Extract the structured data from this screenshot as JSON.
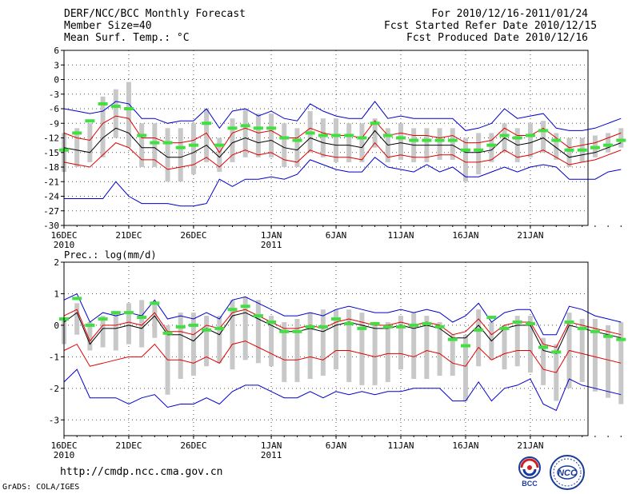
{
  "header": {
    "left": [
      "DERF/NCC/BCC Monthly Forecast",
      "Member Size=40",
      "Mean Surf. Temp.: °C"
    ],
    "right": [
      "For 2010/12/16-2011/01/24",
      "Fcst Started Refer Date 2010/12/15",
      "Fcst Produced Date 2010/12/16"
    ]
  },
  "footer": {
    "url": "http://cmdp.ncc.cma.gov.cn",
    "credit": "GrADS: COLA/IGES"
  },
  "logos": {
    "bcc": "BCC",
    "ncc": "NCC"
  },
  "colors": {
    "ensemble_mean": "#000000",
    "spread": "#e00000",
    "extremes": "#0000cc",
    "member_bar": "#c8c8c8",
    "forecast_marker": "#40e040"
  },
  "chart_data": [
    {
      "type": "line",
      "title": "Mean Surf. Temp.: °C",
      "ylim": [
        -30,
        6
      ],
      "yticks": [
        6,
        3,
        0,
        -3,
        -6,
        -9,
        -12,
        -15,
        -18,
        -21,
        -24,
        -27,
        -30
      ],
      "xlim": [
        0,
        40
      ],
      "xticks": [
        {
          "x": 0,
          "label": "16DEC",
          "sub": "2010"
        },
        {
          "x": 5,
          "label": "21DEC",
          "sub": ""
        },
        {
          "x": 10,
          "label": "26DEC",
          "sub": ""
        },
        {
          "x": 16,
          "label": "1JAN",
          "sub": "2011"
        },
        {
          "x": 21,
          "label": "6JAN",
          "sub": ""
        },
        {
          "x": 26,
          "label": "11JAN",
          "sub": ""
        },
        {
          "x": 31,
          "label": "16JAN",
          "sub": ""
        },
        {
          "x": 36,
          "label": "21JAN",
          "sub": ""
        }
      ],
      "series": [
        {
          "name": "max",
          "color": "#0000cc",
          "values": [
            -6,
            -6.5,
            -7,
            -6.5,
            -4.5,
            -5,
            -8,
            -8,
            -9,
            -8.5,
            -8.5,
            -6,
            -10,
            -6.5,
            -6,
            -7.5,
            -6.5,
            -8,
            -8.5,
            -5,
            -6.5,
            -7.5,
            -8,
            -8,
            -4.5,
            -8,
            -7.5,
            -8,
            -8,
            -8,
            -8,
            -10.5,
            -10,
            -9,
            -6,
            -8,
            -7.5,
            -7,
            -10,
            -10.5,
            -10.5,
            -10,
            -9,
            -8
          ]
        },
        {
          "name": "upper",
          "color": "#e00000",
          "values": [
            -11,
            -12,
            -12.5,
            -9,
            -7.5,
            -8,
            -12,
            -12,
            -13,
            -13,
            -12.5,
            -11,
            -15,
            -11,
            -10,
            -11,
            -10.5,
            -12,
            -12,
            -10,
            -11,
            -11.5,
            -11.5,
            -12,
            -8.5,
            -11.5,
            -11,
            -11.5,
            -11.5,
            -12,
            -11.5,
            -13,
            -13,
            -12.5,
            -10,
            -11.5,
            -11.5,
            -10,
            -12,
            -14,
            -13.5,
            -13,
            -12,
            -11
          ]
        },
        {
          "name": "mean",
          "color": "#000000",
          "values": [
            -14,
            -14.5,
            -15,
            -12,
            -10,
            -11,
            -14,
            -14,
            -16,
            -16,
            -15,
            -13.5,
            -16,
            -13,
            -12,
            -13,
            -12.5,
            -14,
            -14.5,
            -12,
            -13,
            -13.5,
            -13.5,
            -14,
            -10.5,
            -13.5,
            -13,
            -13.5,
            -13.5,
            -13.5,
            -13.5,
            -15,
            -15,
            -14.5,
            -12,
            -13.5,
            -13,
            -12,
            -14,
            -16,
            -15.5,
            -15,
            -14,
            -13
          ]
        },
        {
          "name": "lower",
          "color": "#e00000",
          "values": [
            -17,
            -17.5,
            -18,
            -15.5,
            -13,
            -14,
            -16.5,
            -16.5,
            -18.5,
            -18,
            -17.5,
            -16,
            -18,
            -15.5,
            -14.5,
            -15.5,
            -15,
            -16.5,
            -17,
            -14.5,
            -15.5,
            -16,
            -16,
            -16.5,
            -13,
            -16,
            -15.5,
            -16,
            -16,
            -15.5,
            -15.5,
            -17,
            -17,
            -16.5,
            -14.5,
            -16,
            -15.5,
            -14.5,
            -16,
            -17.5,
            -17,
            -16.5,
            -15.5,
            -14.5
          ]
        },
        {
          "name": "min",
          "color": "#0000cc",
          "values": [
            -24.5,
            -24.5,
            -24.5,
            -24.5,
            -21,
            -24,
            -25.5,
            -25.5,
            -25.5,
            -26,
            -26,
            -25.5,
            -20.5,
            -22,
            -20.5,
            -20.5,
            -20,
            -20.5,
            -19.5,
            -16.5,
            -17.5,
            -18.5,
            -19,
            -19,
            -16,
            -18,
            -18.5,
            -19,
            -17.5,
            -19,
            -18,
            -20,
            -20,
            -19,
            -18,
            -19,
            -18,
            -17.5,
            -18,
            -20.5,
            -20.5,
            -20.5,
            -19,
            -18.5
          ]
        }
      ],
      "members": {
        "bar_low": [
          -19,
          -18,
          -17,
          -16,
          -12,
          -14,
          -18,
          -18,
          -21,
          -21,
          -19.5,
          -17,
          -19,
          -17,
          -16,
          -16,
          -16,
          -18,
          -18,
          -15,
          -16,
          -17,
          -17,
          -17,
          -14,
          -17,
          -16.5,
          -17,
          -17,
          -16.5,
          -16.5,
          -21,
          -19.5,
          -17,
          -15,
          -17,
          -16,
          -15,
          -16.5,
          -18,
          -17,
          -16,
          -15,
          -14
        ],
        "bar_high": [
          -11,
          -10,
          -9,
          -3.5,
          -2,
          -0.5,
          -9,
          -9,
          -10,
          -10,
          -9,
          -6,
          -12,
          -8,
          -6,
          -7,
          -7,
          -9,
          -10,
          -6.5,
          -8,
          -8,
          -9,
          -9,
          -8,
          -10,
          -9,
          -10,
          -10,
          -10,
          -10,
          -12,
          -11,
          -11,
          -9,
          -10,
          -9,
          -8.5,
          -11,
          -12,
          -12,
          -11.5,
          -11,
          -10
        ],
        "forecast": [
          -14.5,
          -11,
          -8.5,
          -5,
          -5.5,
          -6,
          -11.5,
          -13,
          -13,
          -14,
          -13.5,
          -9,
          -13.5,
          -10,
          -9.5,
          -10,
          -10,
          -12,
          -12.5,
          -11,
          -11.5,
          -11.5,
          -11.5,
          -12,
          -9,
          -11.5,
          -12,
          -12.5,
          -12.5,
          -12.5,
          -12.5,
          -14.5,
          -14.5,
          -13.5,
          -11.5,
          -12,
          -11.5,
          -10.5,
          -12.5,
          -14.5,
          -14.5,
          -14,
          -13.5,
          -12.5
        ]
      }
    },
    {
      "type": "line",
      "title": "Prec.: log(mm/d)",
      "ylim": [
        -3.5,
        2
      ],
      "yticks": [
        2,
        1,
        0,
        -1,
        -2,
        -3
      ],
      "xlim": [
        0,
        40
      ],
      "xticks": [
        {
          "x": 0,
          "label": "16DEC",
          "sub": "2010"
        },
        {
          "x": 5,
          "label": "21DEC",
          "sub": ""
        },
        {
          "x": 10,
          "label": "26DEC",
          "sub": ""
        },
        {
          "x": 16,
          "label": "1JAN",
          "sub": "2011"
        },
        {
          "x": 21,
          "label": "6JAN",
          "sub": ""
        },
        {
          "x": 26,
          "label": "11JAN",
          "sub": ""
        },
        {
          "x": 31,
          "label": "16JAN",
          "sub": ""
        },
        {
          "x": 36,
          "label": "21JAN",
          "sub": ""
        }
      ],
      "series": [
        {
          "name": "max",
          "color": "#0000cc",
          "values": [
            0.8,
            1,
            0.1,
            0.4,
            0.3,
            0.4,
            0.3,
            0.8,
            0.2,
            0.3,
            0.2,
            0.4,
            0.2,
            0.8,
            0.9,
            0.7,
            0.5,
            0.3,
            0.3,
            0.4,
            0.3,
            0.5,
            0.6,
            0.5,
            0.4,
            0.4,
            0.5,
            0.4,
            0.5,
            0.4,
            0.1,
            0.3,
            0.7,
            0.1,
            0.4,
            0.5,
            0.5,
            -0.3,
            -0.3,
            0.6,
            0.5,
            0.3,
            0.2,
            0.1
          ]
        },
        {
          "name": "upper",
          "color": "#e00000",
          "values": [
            0.3,
            0.5,
            -0.5,
            0,
            0,
            0.1,
            0,
            0.4,
            -0.2,
            -0.2,
            -0.3,
            0,
            -0.1,
            0.4,
            0.5,
            0.3,
            0.1,
            -0.1,
            -0.1,
            0,
            -0.1,
            0.1,
            0.2,
            0.1,
            0,
            0,
            0.1,
            0,
            0.1,
            0,
            -0.3,
            -0.2,
            0.2,
            -0.3,
            0,
            0.1,
            0.1,
            -0.6,
            -0.7,
            0.1,
            0,
            -0.1,
            -0.2,
            -0.3
          ]
        },
        {
          "name": "mean",
          "color": "#000000",
          "values": [
            0.1,
            0.4,
            -0.6,
            -0.1,
            -0.1,
            0,
            -0.1,
            0.3,
            -0.3,
            -0.3,
            -0.5,
            -0.1,
            -0.3,
            0.3,
            0.4,
            0.2,
            0,
            -0.2,
            -0.2,
            -0.1,
            -0.2,
            0,
            0.1,
            0,
            -0.1,
            -0.1,
            0,
            -0.1,
            0,
            -0.1,
            -0.4,
            -0.4,
            0,
            -0.5,
            -0.1,
            0,
            0,
            -0.8,
            -0.9,
            0,
            -0.1,
            -0.2,
            -0.3,
            -0.4
          ]
        },
        {
          "name": "lower",
          "color": "#e00000",
          "values": [
            -0.8,
            -0.6,
            -1.3,
            -1.2,
            -1.1,
            -1,
            -1,
            -0.6,
            -1.1,
            -1.1,
            -1.2,
            -1,
            -1.2,
            -0.6,
            -0.5,
            -0.7,
            -0.9,
            -1.1,
            -1.1,
            -1,
            -1.1,
            -0.8,
            -0.8,
            -0.9,
            -1,
            -0.9,
            -0.9,
            -1,
            -0.8,
            -0.9,
            -1.2,
            -1.3,
            -0.7,
            -1.1,
            -0.9,
            -0.8,
            -0.8,
            -1.4,
            -1.5,
            -0.8,
            -0.9,
            -1,
            -1.1,
            -1.2
          ]
        },
        {
          "name": "min",
          "color": "#0000cc",
          "values": [
            -1.8,
            -1.4,
            -2.3,
            -2.3,
            -2.3,
            -2.5,
            -2.3,
            -2.2,
            -2.6,
            -2.5,
            -2.5,
            -2.3,
            -2.5,
            -2.1,
            -1.9,
            -1.9,
            -2.1,
            -2.3,
            -2.3,
            -2.1,
            -2.3,
            -2.1,
            -2.2,
            -2.1,
            -2.2,
            -2.1,
            -2.1,
            -2,
            -2,
            -2,
            -2.4,
            -2.4,
            -1.8,
            -2.4,
            -2,
            -1.9,
            -1.7,
            -2.5,
            -2.7,
            -1.7,
            -1.9,
            -2,
            -2.1,
            -2.2
          ]
        }
      ],
      "members": {
        "bar_low": [
          -0.6,
          -0.3,
          -0.8,
          -0.7,
          -0.8,
          -0.6,
          -0.7,
          -0.4,
          -2.2,
          -1.7,
          -1.6,
          -1.3,
          -1.2,
          -1.4,
          -1.1,
          -1.2,
          -1.3,
          -1.8,
          -1.8,
          -1.7,
          -1.6,
          -1.4,
          -1.8,
          -1.9,
          -1.9,
          -1.8,
          -1.4,
          -1.7,
          -1.7,
          -1.6,
          -1.6,
          -2.4,
          -1.3,
          -1.1,
          -1.4,
          -1.3,
          -1.5,
          -1.9,
          -2.4,
          -2,
          -1.8,
          -2.1,
          -2.3,
          -2.5
        ],
        "bar_high": [
          0.2,
          0.7,
          0.1,
          0.3,
          0.4,
          0.7,
          0.8,
          0.7,
          0,
          0.4,
          0.4,
          0.3,
          0.3,
          0.8,
          0.9,
          0.8,
          0.3,
          0.1,
          0.2,
          0.4,
          0.5,
          0.5,
          0.5,
          0.4,
          0.1,
          0.1,
          0.3,
          0.4,
          0.3,
          0.1,
          -0.3,
          -0.3,
          0.5,
          0.1,
          0,
          0.3,
          0.3,
          -0.4,
          -0.6,
          0.4,
          0.2,
          0.2,
          0,
          0.1
        ],
        "forecast": [
          0.2,
          0.85,
          0,
          0.2,
          0.4,
          0.4,
          0.25,
          0.7,
          -0.25,
          -0.05,
          0,
          -0.15,
          -0.1,
          0.5,
          0.6,
          0.3,
          0.1,
          -0.2,
          -0.2,
          -0.05,
          -0.05,
          0.2,
          0.05,
          -0.1,
          0.05,
          -0.05,
          -0.05,
          0,
          0.05,
          -0.05,
          -0.45,
          -0.65,
          -0.15,
          0.25,
          -0.1,
          0.1,
          0.05,
          -0.7,
          -0.85,
          0.1,
          -0.1,
          -0.2,
          -0.35,
          -0.45
        ]
      }
    }
  ]
}
